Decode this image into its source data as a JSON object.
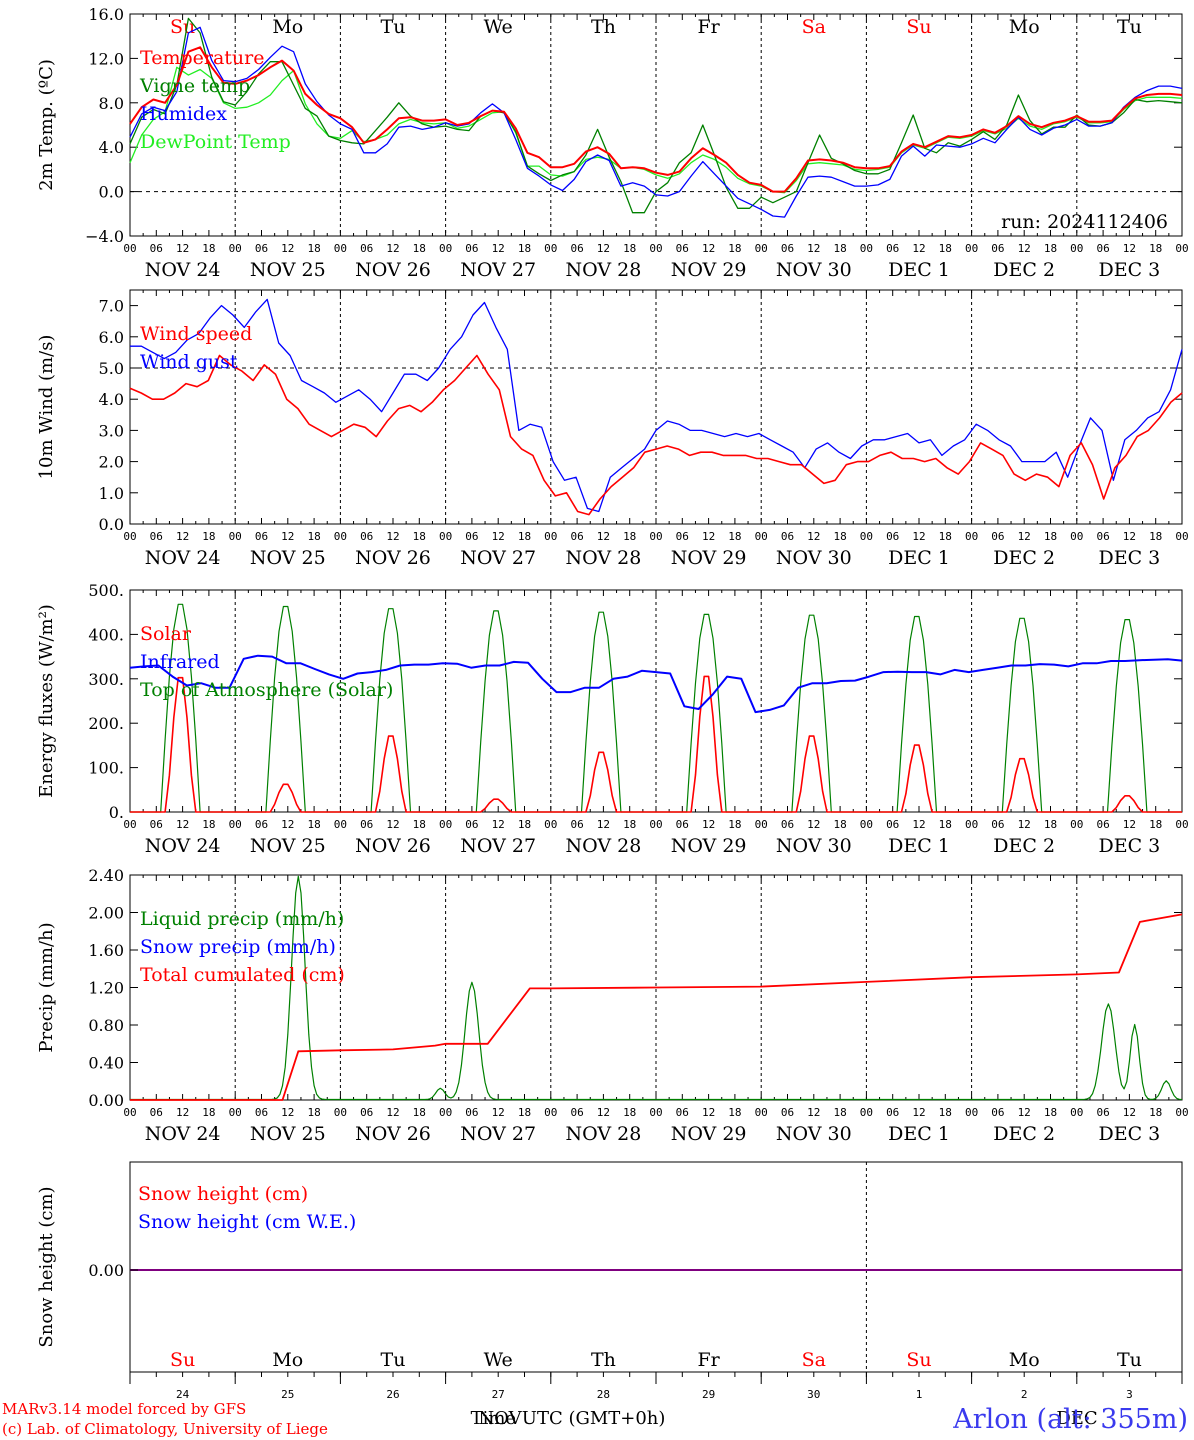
{
  "colors": {
    "red": "#ff0000",
    "green": "#008000",
    "blue": "#0000ff",
    "lime": "#22ee22",
    "purple": "#7f007f",
    "black": "#000000"
  },
  "days_top": [
    "Su",
    "Mo",
    "Tu",
    "We",
    "Th",
    "Fr",
    "Sa",
    "Su",
    "Mo",
    "Tu"
  ],
  "days_top_colors": [
    "red",
    "black",
    "black",
    "black",
    "black",
    "black",
    "red",
    "red",
    "black",
    "black"
  ],
  "date_labels": [
    "NOV 24",
    "NOV 25",
    "NOV 26",
    "NOV 27",
    "NOV 28",
    "NOV 29",
    "NOV 30",
    "DEC  1",
    "DEC  2",
    "DEC  3"
  ],
  "hour_labels": [
    "00",
    "06",
    "12",
    "18"
  ],
  "hour_end": "00",
  "day_numbers": [
    "24",
    "25",
    "26",
    "27",
    "28",
    "29",
    "30",
    "1",
    "2",
    "3"
  ],
  "footer": {
    "credit1": "MARv3.14 model forced by GFS",
    "credit2": "(c) Lab. of Climatology, University of Liege",
    "time_label": "Time UTC (GMT+0h)",
    "overlap_label": "NOV",
    "overlap_label2": "DEC",
    "station": "Arlon (alt: 355m)"
  },
  "chart_data": [
    {
      "type": "line",
      "ylabel": "2m Temp. (ºC)",
      "ylim": [
        -4,
        16
      ],
      "yticks": [
        "16.0",
        "12.0",
        "8.0",
        "4.0",
        "0.0",
        "−4.0"
      ],
      "yticks_values": [
        16,
        12,
        8,
        4,
        0,
        -4
      ],
      "dashed_ref": 0,
      "legend": [
        "Temperature",
        "Vigne temp",
        "Humidex",
        "DewPoint Temp"
      ],
      "run_label": "run: 2024112406",
      "series": [
        {
          "name": "Temperature",
          "color": "red",
          "values": [
            6.1,
            7.6,
            8.3,
            8.0,
            9.6,
            12.6,
            13.0,
            11.2,
            9.8,
            9.7,
            10.0,
            10.5,
            11.2,
            11.8,
            10.9,
            8.8,
            7.8,
            7.0,
            6.6,
            5.8,
            4.4,
            4.7,
            5.6,
            6.6,
            6.7,
            6.4,
            6.4,
            6.5,
            6.0,
            6.2,
            6.8,
            7.3,
            7.2,
            5.7,
            3.5,
            3.1,
            2.2,
            2.2,
            2.5,
            3.6,
            4.0,
            3.4,
            2.1,
            2.2,
            2.1,
            1.7,
            1.5,
            1.8,
            3.0,
            3.9,
            3.3,
            2.6,
            1.5,
            0.8,
            0.6,
            0.0,
            0.0,
            1.2,
            2.8,
            2.9,
            2.8,
            2.6,
            2.2,
            2.1,
            2.1,
            2.3,
            3.6,
            4.3,
            4.0,
            4.5,
            5.0,
            4.9,
            5.1,
            5.6,
            5.3,
            5.9,
            6.8,
            6.1,
            5.8,
            6.2,
            6.4,
            6.8,
            6.3,
            6.3,
            6.4,
            7.5,
            8.4,
            8.7,
            8.8,
            8.8,
            8.7
          ]
        },
        {
          "name": "Vigne temp",
          "color": "green",
          "values": [
            4.3,
            6.7,
            7.4,
            7.0,
            9.6,
            15.6,
            14.3,
            10.3,
            8.1,
            7.8,
            9.0,
            10.6,
            11.7,
            11.7,
            9.6,
            7.5,
            6.8,
            5.0,
            4.6,
            4.4,
            4.3,
            5.5,
            6.7,
            8.0,
            6.8,
            6.1,
            5.8,
            5.9,
            5.6,
            5.5,
            6.8,
            7.3,
            7.1,
            5.4,
            2.3,
            1.6,
            1.0,
            1.5,
            1.8,
            3.3,
            5.6,
            3.1,
            0.9,
            -1.9,
            -1.9,
            0.0,
            0.8,
            2.6,
            3.5,
            6.0,
            3.3,
            0.4,
            -1.5,
            -1.5,
            -0.5,
            -1.0,
            -0.5,
            0.0,
            2.6,
            5.1,
            3.0,
            2.5,
            1.9,
            1.6,
            1.6,
            2.0,
            4.4,
            6.9,
            3.9,
            3.5,
            4.4,
            4.1,
            4.7,
            5.4,
            4.7,
            6.0,
            8.7,
            6.4,
            5.2,
            5.8,
            5.8,
            6.9,
            6.0,
            5.9,
            6.2,
            7.1,
            8.3,
            8.1,
            8.2,
            8.1,
            8.0
          ]
        },
        {
          "name": "Humidex",
          "color": "blue",
          "values": [
            4.9,
            7.0,
            7.6,
            7.3,
            9.0,
            14.3,
            14.8,
            11.8,
            10.0,
            9.9,
            10.2,
            11.0,
            12.1,
            13.1,
            12.6,
            9.7,
            8.1,
            6.9,
            6.1,
            5.6,
            3.5,
            3.5,
            4.3,
            5.8,
            5.9,
            5.6,
            5.8,
            6.2,
            5.9,
            6.1,
            7.1,
            7.9,
            7.1,
            4.7,
            2.1,
            1.4,
            0.6,
            0.1,
            1.1,
            2.7,
            3.3,
            2.8,
            0.5,
            0.8,
            0.5,
            -0.3,
            -0.4,
            0.0,
            1.4,
            2.7,
            1.6,
            0.5,
            -0.6,
            -1.1,
            -1.6,
            -2.2,
            -2.3,
            -0.4,
            1.3,
            1.4,
            1.3,
            0.9,
            0.5,
            0.5,
            0.6,
            1.1,
            3.2,
            4.1,
            3.2,
            4.2,
            4.1,
            4.0,
            4.3,
            4.8,
            4.4,
            5.6,
            6.7,
            5.6,
            5.1,
            5.7,
            6.0,
            6.5,
            5.9,
            5.9,
            6.2,
            7.6,
            8.5,
            9.1,
            9.5,
            9.5,
            9.3
          ]
        },
        {
          "name": "DewPoint Temp",
          "color": "lime",
          "values": [
            2.6,
            5.1,
            6.5,
            7.2,
            11.2,
            10.5,
            11.0,
            10.2,
            8.0,
            7.5,
            7.6,
            8.0,
            8.7,
            10.0,
            10.9,
            7.9,
            6.1,
            5.0,
            4.8,
            5.5,
            4.5,
            4.7,
            5.1,
            6.1,
            6.5,
            6.2,
            6.1,
            6.2,
            5.7,
            5.9,
            6.5,
            7.1,
            7.2,
            5.3,
            2.3,
            2.3,
            1.5,
            1.4,
            1.8,
            2.9,
            3.1,
            2.9,
            2.1,
            2.2,
            2.0,
            1.5,
            1.2,
            1.6,
            2.6,
            3.3,
            2.9,
            2.2,
            1.2,
            0.7,
            0.5,
            0.0,
            -0.1,
            1.0,
            2.5,
            2.6,
            2.5,
            2.4,
            2.0,
            1.9,
            2.0,
            2.2,
            3.5,
            4.2,
            3.9,
            4.4,
            4.9,
            4.8,
            5.0,
            5.5,
            5.2,
            5.7,
            6.6,
            5.9,
            5.6,
            6.1,
            6.3,
            6.7,
            6.2,
            6.2,
            6.3,
            7.4,
            8.2,
            8.5,
            8.5,
            8.5,
            8.4
          ]
        }
      ]
    },
    {
      "type": "line",
      "ylabel": "10m Wind (m/s)",
      "ylim": [
        0,
        7.5
      ],
      "yticks": [
        "7.0",
        "6.0",
        "5.0",
        "4.0",
        "3.0",
        "2.0",
        "1.0",
        "0.0"
      ],
      "yticks_values": [
        7,
        6,
        5,
        4,
        3,
        2,
        1,
        0
      ],
      "dashed_ref": 5,
      "legend": [
        "Wind speed",
        "Wind gust"
      ],
      "series": [
        {
          "name": "Wind speed",
          "color": "red",
          "values": [
            4.35,
            4.2,
            4.0,
            4.0,
            4.2,
            4.5,
            4.4,
            4.6,
            5.4,
            5.1,
            4.9,
            4.6,
            5.1,
            4.8,
            4.0,
            3.7,
            3.2,
            3.0,
            2.8,
            3.0,
            3.2,
            3.1,
            2.8,
            3.3,
            3.7,
            3.8,
            3.6,
            3.9,
            4.3,
            4.6,
            5.0,
            5.4,
            4.8,
            4.3,
            2.8,
            2.4,
            2.2,
            1.4,
            0.9,
            1.0,
            0.4,
            0.3,
            0.8,
            1.2,
            1.5,
            1.8,
            2.3,
            2.4,
            2.5,
            2.4,
            2.2,
            2.3,
            2.3,
            2.2,
            2.2,
            2.2,
            2.1,
            2.1,
            2.0,
            1.9,
            1.9,
            1.6,
            1.3,
            1.4,
            1.9,
            2.0,
            2.0,
            2.2,
            2.3,
            2.1,
            2.1,
            2.0,
            2.1,
            1.8,
            1.6,
            2.0,
            2.6,
            2.4,
            2.2,
            1.6,
            1.4,
            1.6,
            1.5,
            1.2,
            2.2,
            2.6,
            1.9,
            0.8,
            1.8,
            2.2,
            2.8,
            3.0,
            3.4,
            3.9,
            4.2
          ]
        },
        {
          "name": "Wind gust",
          "color": "blue",
          "values": [
            5.7,
            5.7,
            5.5,
            5.3,
            5.5,
            5.9,
            6.1,
            6.6,
            7.0,
            6.7,
            6.3,
            6.8,
            7.2,
            5.8,
            5.4,
            4.6,
            4.4,
            4.2,
            3.9,
            4.1,
            4.3,
            4.0,
            3.6,
            4.2,
            4.8,
            4.8,
            4.6,
            5.0,
            5.6,
            6.0,
            6.7,
            7.1,
            6.3,
            5.6,
            3.0,
            3.2,
            3.1,
            2.0,
            1.4,
            1.5,
            0.5,
            0.4,
            1.5,
            1.8,
            2.1,
            2.4,
            3.0,
            3.3,
            3.2,
            3.0,
            3.0,
            2.9,
            2.8,
            2.9,
            2.8,
            2.9,
            2.7,
            2.5,
            2.3,
            1.8,
            2.4,
            2.6,
            2.3,
            2.1,
            2.5,
            2.7,
            2.7,
            2.8,
            2.9,
            2.6,
            2.7,
            2.2,
            2.5,
            2.7,
            3.2,
            3.0,
            2.7,
            2.5,
            2.0,
            2.0,
            2.0,
            2.3,
            1.5,
            2.5,
            3.4,
            3.0,
            1.4,
            2.7,
            3.0,
            3.4,
            3.6,
            4.3,
            5.6
          ]
        }
      ]
    },
    {
      "type": "line",
      "ylabel": "Energy fluxes (W/m²)",
      "ylim": [
        0,
        500
      ],
      "yticks": [
        "500.",
        "400.",
        "300.",
        "200.",
        "100.",
        "0."
      ],
      "yticks_values": [
        500,
        400,
        300,
        200,
        100,
        0
      ],
      "legend": [
        "Solar",
        "Infrared",
        "Top of Atmosphere (Solar)"
      ],
      "daily_peaks": {
        "solar": [
          315,
          65,
          178,
          30,
          140,
          318,
          178,
          157,
          125,
          38
        ],
        "toa": [
          475,
          470,
          465,
          460,
          457,
          452,
          450,
          447,
          443,
          440
        ]
      },
      "series": [
        {
          "name": "Infrared",
          "color": "blue",
          "values": [
            325,
            328,
            330,
            305,
            285,
            290,
            280,
            280,
            345,
            352,
            350,
            335,
            335,
            322,
            310,
            300,
            312,
            315,
            320,
            330,
            332,
            332,
            335,
            334,
            325,
            330,
            330,
            338,
            336,
            300,
            270,
            270,
            280,
            280,
            300,
            305,
            318,
            315,
            312,
            238,
            232,
            265,
            305,
            300,
            225,
            230,
            240,
            280,
            290,
            290,
            295,
            296,
            305,
            315,
            316,
            315,
            315,
            310,
            320,
            315,
            320,
            325,
            330,
            330,
            333,
            332,
            328,
            335,
            335,
            340,
            340,
            342,
            343,
            344,
            341
          ]
        }
      ]
    },
    {
      "type": "line",
      "ylabel": "Precip (mm/h)",
      "ylim": [
        0,
        2.4
      ],
      "yticks": [
        "2.40",
        "2.00",
        "1.60",
        "1.20",
        "0.80",
        "0.40",
        "0.00"
      ],
      "yticks_values": [
        2.4,
        2.0,
        1.6,
        1.2,
        0.8,
        0.4,
        0.0
      ],
      "legend": [
        "Liquid precip (mm/h)",
        "Snow precip (mm/h)",
        "Total cumulated (cm)"
      ],
      "liquid_peaks": [
        {
          "day": 1.6,
          "value": 2.38
        },
        {
          "day": 3.25,
          "value": 1.25
        },
        {
          "day": 2.95,
          "value": 0.12
        },
        {
          "day": 9.3,
          "value": 1.02
        },
        {
          "day": 9.55,
          "value": 0.8
        },
        {
          "day": 9.85,
          "value": 0.2
        }
      ],
      "series": [
        {
          "name": "Total cumulated (cm)",
          "color": "red",
          "x_days": [
            0,
            1.45,
            1.6,
            2.0,
            2.5,
            2.9,
            3.0,
            3.4,
            3.8,
            4.0,
            5.0,
            6.0,
            7.0,
            8.0,
            9.0,
            9.4,
            9.6,
            10.0
          ],
          "values": [
            0,
            0,
            0.52,
            0.53,
            0.54,
            0.58,
            0.6,
            0.6,
            1.19,
            1.19,
            1.2,
            1.21,
            1.26,
            1.31,
            1.34,
            1.36,
            1.9,
            1.98
          ]
        }
      ]
    },
    {
      "type": "line",
      "ylabel": "Snow height (cm)",
      "ytick": "0.00",
      "legend": [
        "Snow height (cm)",
        "Snow height (cm W.E.)"
      ],
      "series": [
        {
          "name": "Snow height (cm)",
          "color": "red",
          "values": [
            0,
            0
          ]
        },
        {
          "name": "Snow height (cm W.E.)",
          "color": "blue",
          "values": [
            0,
            0
          ]
        }
      ]
    }
  ]
}
